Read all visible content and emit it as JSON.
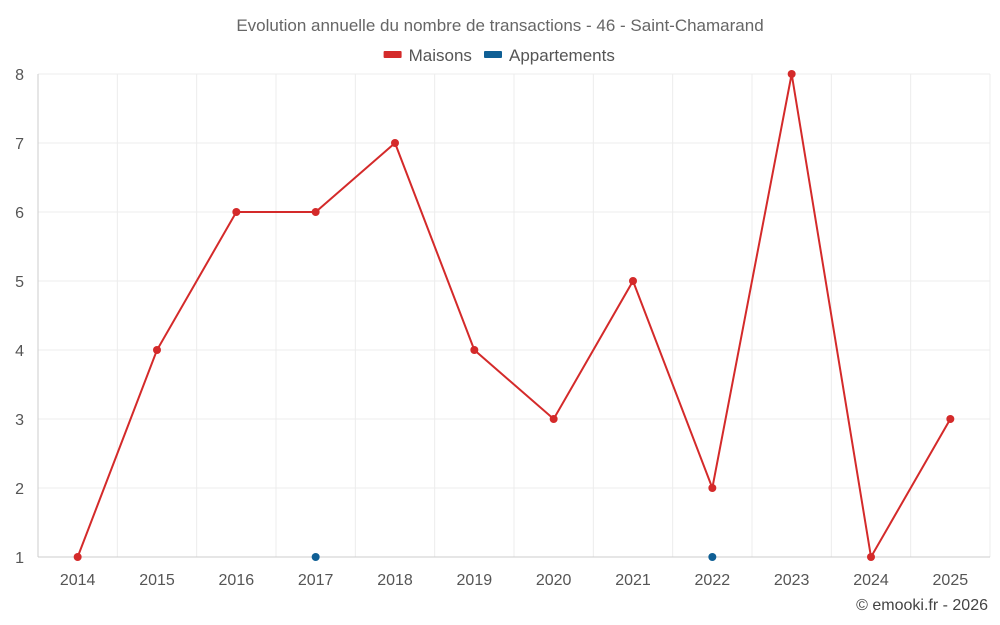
{
  "chart_data": {
    "type": "line",
    "title": "Evolution annuelle du nombre de transactions - 46 - Saint-Chamarand",
    "categories": [
      "2014",
      "2015",
      "2016",
      "2017",
      "2018",
      "2019",
      "2020",
      "2021",
      "2022",
      "2023",
      "2024",
      "2025"
    ],
    "series": [
      {
        "name": "Maisons",
        "color": "#d42a2a",
        "values": [
          1,
          4,
          6,
          6,
          7,
          4,
          3,
          5,
          2,
          8,
          1,
          3
        ]
      },
      {
        "name": "Appartements",
        "color": "#0f5f95",
        "values": [
          null,
          null,
          null,
          1,
          null,
          null,
          null,
          null,
          1,
          null,
          null,
          null
        ]
      }
    ],
    "ylim": [
      1,
      8
    ],
    "yticks": [
      1,
      2,
      3,
      4,
      5,
      6,
      7,
      8
    ],
    "xlabel": "",
    "ylabel": "",
    "legend": "top-center",
    "grid": true
  },
  "credit": "© emooki.fr - 2026"
}
